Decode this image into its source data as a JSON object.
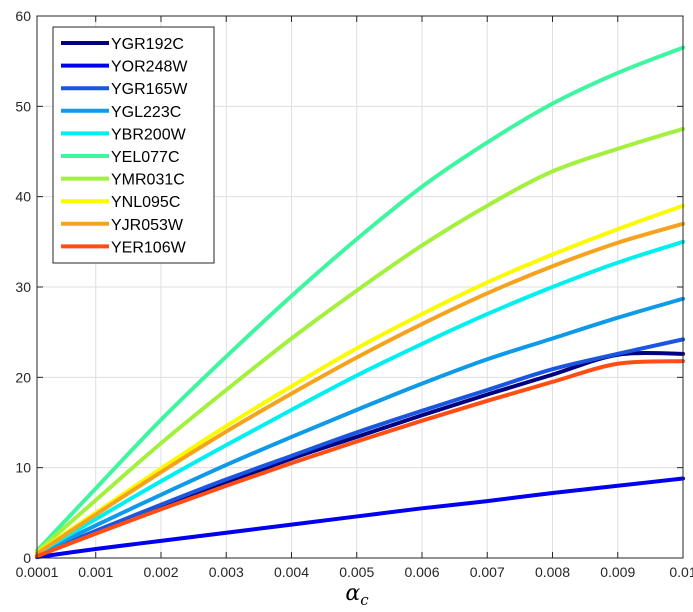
{
  "chart_data": {
    "type": "line",
    "title": "",
    "xlabel": {
      "base": "α",
      "sub": "c"
    },
    "ylabel": "",
    "xlim": [
      0.0001,
      0.01
    ],
    "ylim": [
      0,
      60
    ],
    "xticks": [
      0.0001,
      0.001,
      0.002,
      0.003,
      0.004,
      0.005,
      0.006,
      0.007,
      0.008,
      0.009,
      0.01
    ],
    "xtick_labels": [
      "0.0001",
      "0.001",
      "0.002",
      "0.003",
      "0.004",
      "0.005",
      "0.006",
      "0.007",
      "0.008",
      "0.009",
      "0.01"
    ],
    "yticks": [
      0,
      10,
      20,
      30,
      40,
      50,
      60
    ],
    "ytick_labels": [
      "0",
      "10",
      "20",
      "30",
      "40",
      "50",
      "60"
    ],
    "grid": true,
    "legend_position": "top-left",
    "x": [
      0.0001,
      0.001,
      0.002,
      0.003,
      0.004,
      0.005,
      0.006,
      0.007,
      0.008,
      0.009,
      0.01
    ],
    "series": [
      {
        "name": "YGR192C",
        "color": "#000080",
        "values": [
          0.3,
          2.8,
          5.6,
          8.3,
          11.0,
          13.4,
          15.8,
          18.1,
          20.3,
          22.5,
          22.6
        ]
      },
      {
        "name": "YOR248W",
        "color": "#0000ee",
        "values": [
          0.1,
          1.0,
          1.9,
          2.8,
          3.7,
          4.6,
          5.5,
          6.3,
          7.2,
          8.0,
          8.8
        ]
      },
      {
        "name": "YGR165W",
        "color": "#1a56e0",
        "values": [
          0.3,
          3.0,
          5.9,
          8.7,
          11.3,
          13.9,
          16.3,
          18.6,
          20.9,
          22.6,
          24.2
        ]
      },
      {
        "name": "YGL223C",
        "color": "#0e9ae8",
        "values": [
          0.4,
          3.6,
          7.0,
          10.3,
          13.4,
          16.4,
          19.3,
          22.0,
          24.3,
          26.6,
          28.7
        ]
      },
      {
        "name": "YBR200W",
        "color": "#00f0f0",
        "values": [
          0.5,
          4.3,
          8.5,
          12.5,
          16.4,
          20.2,
          23.7,
          27.0,
          30.0,
          32.7,
          35.0
        ]
      },
      {
        "name": "YEL077C",
        "color": "#3ef5a0",
        "values": [
          0.8,
          7.7,
          15.3,
          22.3,
          29.0,
          35.3,
          41.1,
          46.0,
          50.3,
          53.7,
          56.5
        ]
      },
      {
        "name": "YMR031C",
        "color": "#a3f03e",
        "values": [
          0.7,
          6.4,
          12.7,
          18.6,
          24.3,
          29.6,
          34.6,
          39.0,
          42.8,
          45.3,
          47.5
        ]
      },
      {
        "name": "YNL095C",
        "color": "#fafa00",
        "values": [
          0.6,
          5.0,
          9.9,
          14.6,
          19.0,
          23.2,
          27.0,
          30.5,
          33.6,
          36.4,
          39.0
        ]
      },
      {
        "name": "YJR053W",
        "color": "#f5a31e",
        "values": [
          0.5,
          4.8,
          9.5,
          14.0,
          18.2,
          22.2,
          25.9,
          29.3,
          32.3,
          34.9,
          37.0
        ]
      },
      {
        "name": "YER106W",
        "color": "#ff4d14",
        "values": [
          0.2,
          2.7,
          5.4,
          8.0,
          10.5,
          12.9,
          15.2,
          17.4,
          19.5,
          21.5,
          21.8
        ]
      }
    ]
  }
}
